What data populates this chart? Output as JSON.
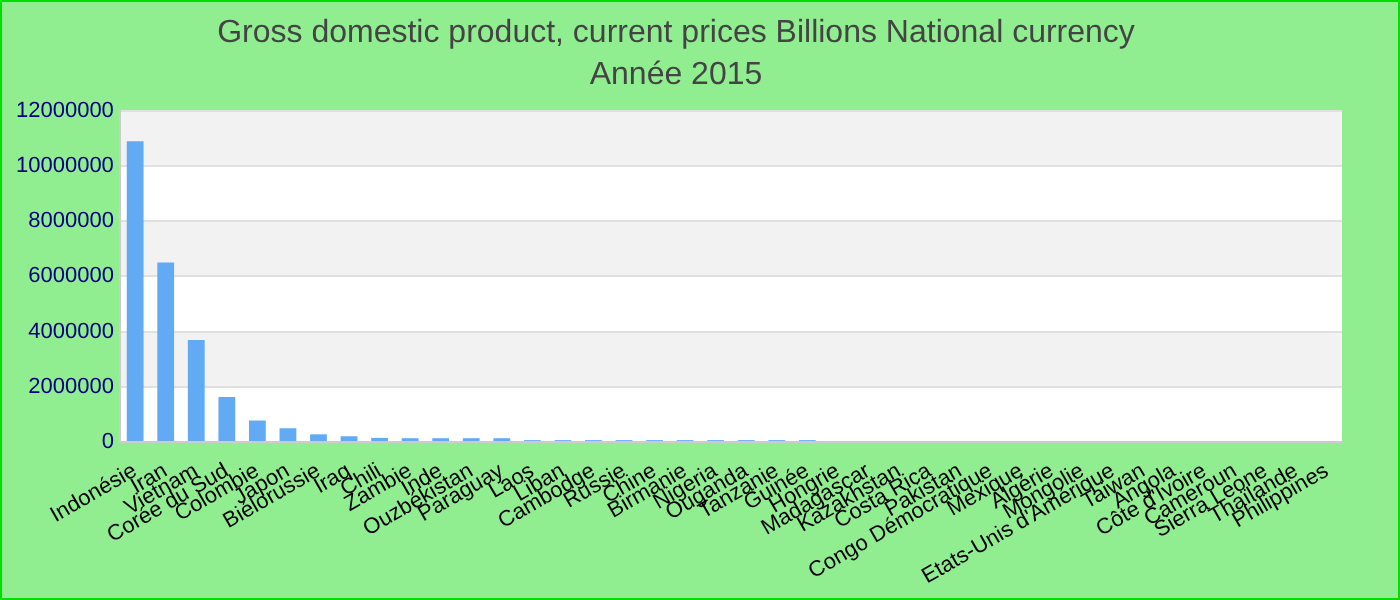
{
  "chart_data": {
    "type": "bar",
    "title": "Gross domestic product, current prices Billions National currency",
    "subtitle": "Année 2015",
    "categories": [
      "Indonésie",
      "Iran",
      "Vietnam",
      "Corée du Sud",
      "Colombie",
      "Japon",
      "Biélorussie",
      "Iraq",
      "Chili",
      "Zambie",
      "Inde",
      "Ouzbékistan",
      "Paraguay",
      "Laos",
      "Liban",
      "Cambodge",
      "Russie",
      "Chine",
      "Birmanie",
      "Nigeria",
      "Ouganda",
      "Tanzanie",
      "Guinée",
      "Hongrie",
      "Madagascar",
      "Kazakhstan",
      "Costa Rica",
      "Pakistan",
      "Congo Démocratique",
      "Mexique",
      "Algérie",
      "Mongolie",
      "Etats-Unis d'Amérique",
      "Taiwan",
      "Angola",
      "Côte d'Ivoire",
      "Cameroun",
      "Sierra Leone",
      "Thaïlande",
      "Philippines"
    ],
    "values": [
      10900000,
      6500000,
      3700000,
      1630000,
      780000,
      500000,
      280000,
      210000,
      150000,
      140000,
      140000,
      140000,
      140000,
      70000,
      70000,
      70000,
      70000,
      70000,
      70000,
      70000,
      70000,
      70000,
      70000,
      0,
      0,
      0,
      0,
      0,
      0,
      0,
      0,
      0,
      0,
      0,
      0,
      0,
      0,
      0,
      0,
      0
    ],
    "color": "#63aaf5",
    "ylim": [
      0,
      12000000
    ],
    "yticks": [
      0,
      2000000,
      4000000,
      6000000,
      8000000,
      10000000,
      12000000
    ],
    "grid": "y",
    "legend": false
  }
}
